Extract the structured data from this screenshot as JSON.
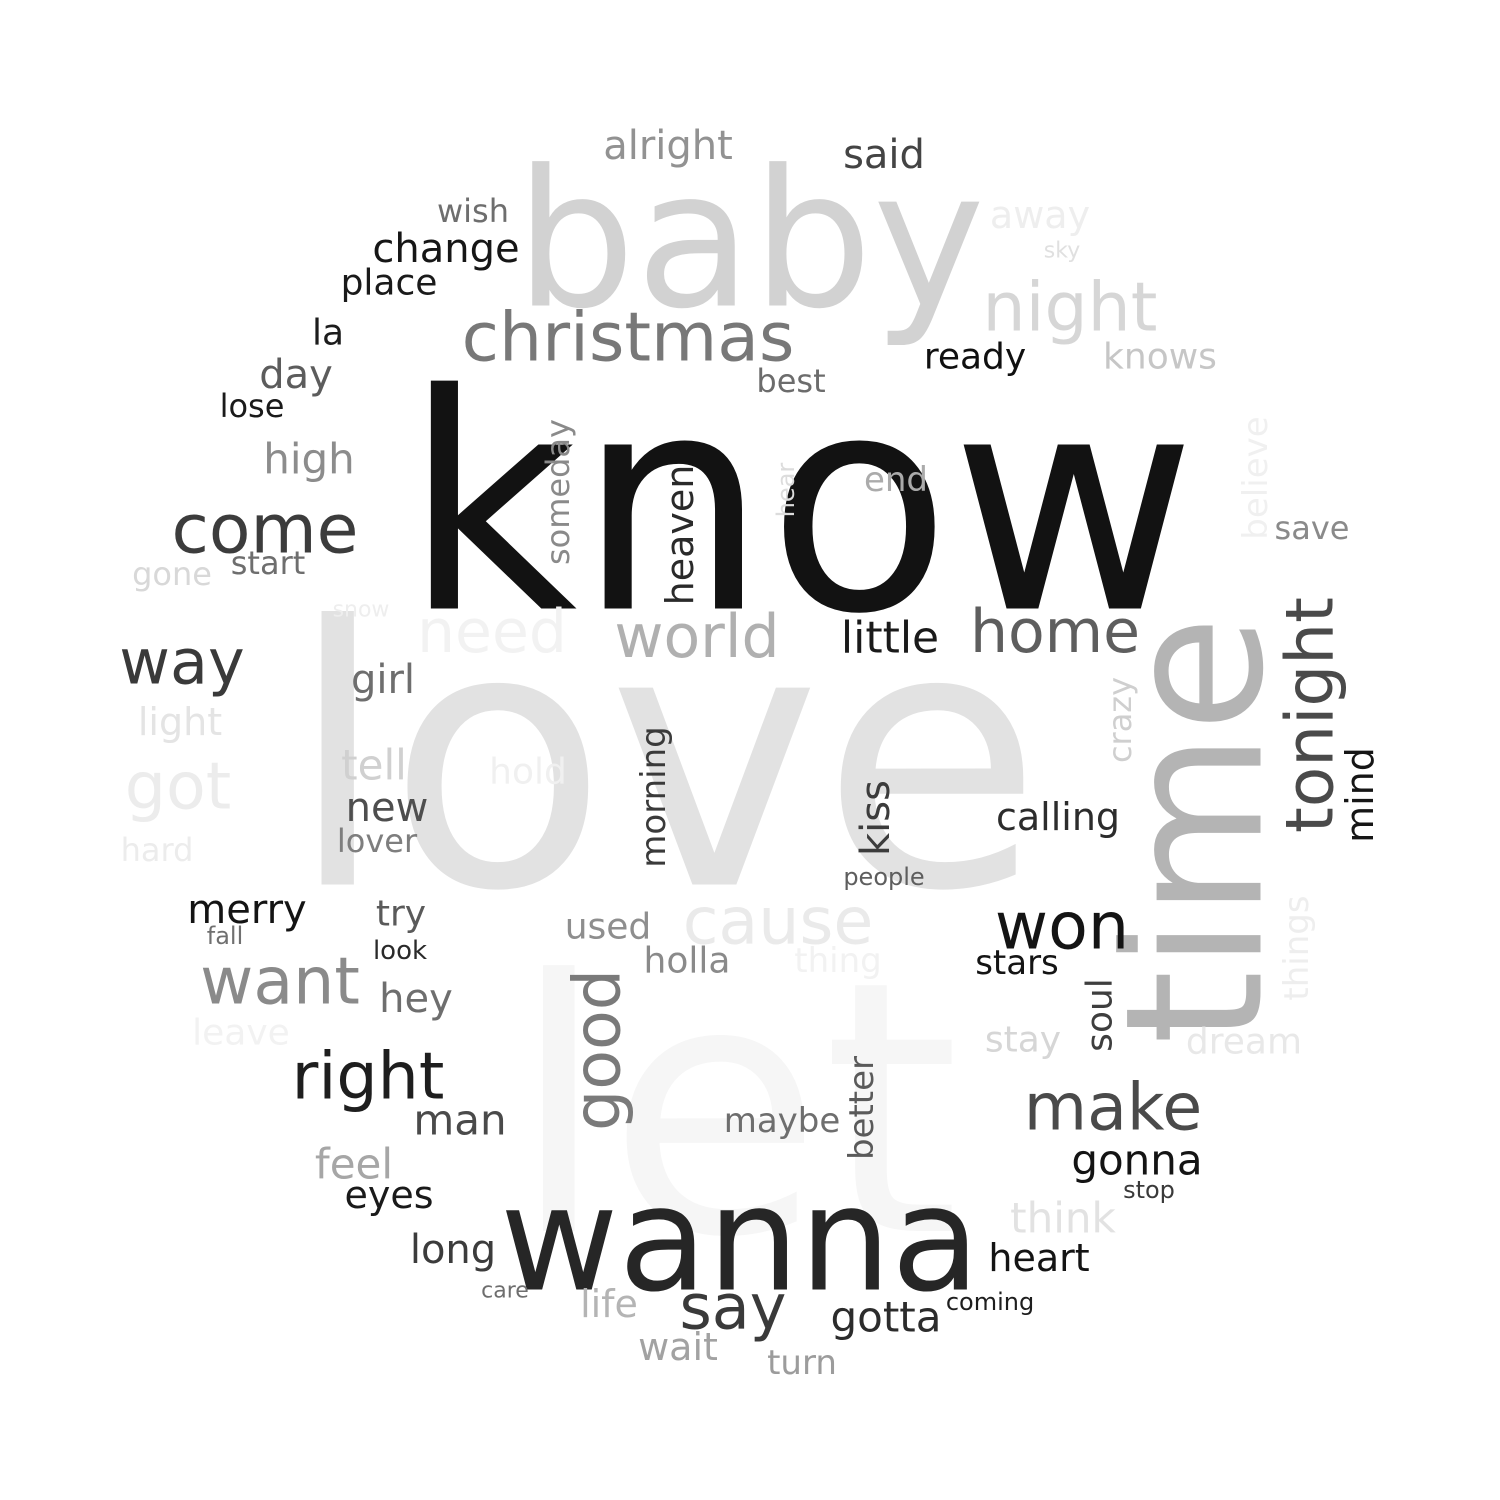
{
  "words": [
    {
      "text": "love",
      "color": "#e2e2e2"
    },
    {
      "text": "know",
      "color": "#121212"
    },
    {
      "text": "let",
      "color": "#f6f6f6"
    },
    {
      "text": "baby",
      "color": "#d2d2d2"
    },
    {
      "text": "time",
      "color": "#b4b4b4"
    },
    {
      "text": "wanna",
      "color": "#262626"
    },
    {
      "text": "christmas",
      "color": "#787878"
    },
    {
      "text": "night",
      "color": "#d6d6d6"
    },
    {
      "text": "home",
      "color": "#5e5e5e"
    },
    {
      "text": "world",
      "color": "#b0b0b0"
    },
    {
      "text": "need",
      "color": "#f2f2f2"
    },
    {
      "text": "tonight",
      "color": "#4a4a4a"
    },
    {
      "text": "come",
      "color": "#3c3c3c"
    },
    {
      "text": "way",
      "color": "#3a3a3a"
    },
    {
      "text": "won",
      "color": "#141414"
    },
    {
      "text": "want",
      "color": "#8a8a8a"
    },
    {
      "text": "right",
      "color": "#1e1e1e"
    },
    {
      "text": "make",
      "color": "#4a4a4a"
    },
    {
      "text": "cause",
      "color": "#eaeaea"
    },
    {
      "text": "got",
      "color": "#ececec"
    },
    {
      "text": "say",
      "color": "#3a3a3a"
    },
    {
      "text": "good",
      "color": "#7a7a7a"
    },
    {
      "text": "alright",
      "color": "#929292"
    },
    {
      "text": "said",
      "color": "#444444"
    },
    {
      "text": "away",
      "color": "#eeeeee"
    },
    {
      "text": "sky",
      "color": "#e0e0e0"
    },
    {
      "text": "wish",
      "color": "#6e6e6e"
    },
    {
      "text": "change",
      "color": "#161616"
    },
    {
      "text": "place",
      "color": "#1a1a1a"
    },
    {
      "text": "la",
      "color": "#1c1c1c"
    },
    {
      "text": "ready",
      "color": "#101010"
    },
    {
      "text": "knows",
      "color": "#c6c6c6"
    },
    {
      "text": "day",
      "color": "#5c5c5c"
    },
    {
      "text": "best",
      "color": "#6c6c6c"
    },
    {
      "text": "lose",
      "color": "#1a1a1a"
    },
    {
      "text": "believe",
      "color": "#f0f0f0"
    },
    {
      "text": "high",
      "color": "#8c8c8c"
    },
    {
      "text": "someday",
      "color": "#8a8a8a"
    },
    {
      "text": "heaven",
      "color": "#2a2a2a"
    },
    {
      "text": "hear",
      "color": "#dcdcdc"
    },
    {
      "text": "end",
      "color": "#ababab"
    },
    {
      "text": "save",
      "color": "#8a8a8a"
    },
    {
      "text": "start",
      "color": "#6e6e6e"
    },
    {
      "text": "gone",
      "color": "#d8d8d8"
    },
    {
      "text": "snow",
      "color": "#eeeeee"
    },
    {
      "text": "little",
      "color": "#1a1a1a"
    },
    {
      "text": "girl",
      "color": "#6e6e6e"
    },
    {
      "text": "light",
      "color": "#e4e4e4"
    },
    {
      "text": "tell",
      "color": "#d0d0d0"
    },
    {
      "text": "hold",
      "color": "#f0f0f0"
    },
    {
      "text": "morning",
      "color": "#3a3a3a"
    },
    {
      "text": "crazy",
      "color": "#cfcfcf"
    },
    {
      "text": "mind",
      "color": "#161616"
    },
    {
      "text": "new",
      "color": "#4e4e4e"
    },
    {
      "text": "lover",
      "color": "#7e7e7e"
    },
    {
      "text": "calling",
      "color": "#2c2c2c"
    },
    {
      "text": "kiss",
      "color": "#3c3c3c"
    },
    {
      "text": "hard",
      "color": "#ececec"
    },
    {
      "text": "people",
      "color": "#5e5e5e"
    },
    {
      "text": "things",
      "color": "#eeeeee"
    },
    {
      "text": "merry",
      "color": "#141414"
    },
    {
      "text": "try",
      "color": "#5a5a5a"
    },
    {
      "text": "fall",
      "color": "#707070"
    },
    {
      "text": "look",
      "color": "#2a2a2a"
    },
    {
      "text": "used",
      "color": "#8e8e8e"
    },
    {
      "text": "holla",
      "color": "#8a8a8a"
    },
    {
      "text": "thing",
      "color": "#f2f2f2"
    },
    {
      "text": "stars",
      "color": "#141414"
    },
    {
      "text": "hey",
      "color": "#6e6e6e"
    },
    {
      "text": "leave",
      "color": "#f2f2f2"
    },
    {
      "text": "stay",
      "color": "#d6d6d6"
    },
    {
      "text": "soul",
      "color": "#3e3e3e"
    },
    {
      "text": "dream",
      "color": "#e8e8e8"
    },
    {
      "text": "man",
      "color": "#4a4a4a"
    },
    {
      "text": "maybe",
      "color": "#6e6e6e"
    },
    {
      "text": "better",
      "color": "#5a5a5a"
    },
    {
      "text": "feel",
      "color": "#a6a6a6"
    },
    {
      "text": "gonna",
      "color": "#141414"
    },
    {
      "text": "stop",
      "color": "#3a3a3a"
    },
    {
      "text": "eyes",
      "color": "#1a1a1a"
    },
    {
      "text": "think",
      "color": "#e2e2e2"
    },
    {
      "text": "long",
      "color": "#3c3c3c"
    },
    {
      "text": "heart",
      "color": "#141414"
    },
    {
      "text": "care",
      "color": "#6e6e6e"
    },
    {
      "text": "life",
      "color": "#b4b4b4"
    },
    {
      "text": "gotta",
      "color": "#2c2c2c"
    },
    {
      "text": "coming",
      "color": "#1e1e1e"
    },
    {
      "text": "wait",
      "color": "#a2a2a2"
    },
    {
      "text": "turn",
      "color": "#9c9c9c"
    }
  ]
}
